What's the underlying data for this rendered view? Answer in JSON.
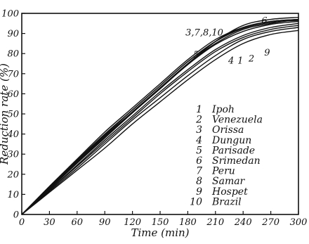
{
  "chart_data": {
    "type": "line",
    "xlabel": "Time  (min)",
    "ylabel": "Reduction  rate (%)",
    "xlim": [
      0,
      300
    ],
    "ylim": [
      0,
      100
    ],
    "x_ticks": [
      0,
      30,
      60,
      90,
      120,
      150,
      180,
      210,
      240,
      270,
      300
    ],
    "x_tick_labels": [
      "0",
      "30",
      "60",
      "90",
      "120",
      "150",
      "180",
      "210",
      "240",
      "270",
      "300"
    ],
    "y_ticks": [
      0,
      10,
      20,
      30,
      40,
      50,
      60,
      70,
      80,
      90,
      100
    ],
    "y_tick_labels": [
      "0",
      "10",
      "20",
      "30",
      "40",
      "50",
      "60",
      "70",
      "80",
      "90",
      "100"
    ],
    "grid": false,
    "legend_position": "lower-right",
    "series": [
      {
        "id": "1",
        "name": "Ipoh",
        "x": [
          0,
          30,
          60,
          90,
          120,
          150,
          180,
          210,
          240,
          270,
          300
        ],
        "y": [
          0,
          12,
          24,
          36,
          48,
          60,
          71,
          81,
          88,
          92,
          94
        ]
      },
      {
        "id": "2",
        "name": "Venezuela",
        "x": [
          0,
          30,
          60,
          90,
          120,
          150,
          180,
          210,
          240,
          270,
          300
        ],
        "y": [
          0,
          11.5,
          23,
          35,
          47,
          58,
          69,
          79,
          87,
          91,
          93
        ]
      },
      {
        "id": "3",
        "name": "Orissa",
        "x": [
          0,
          30,
          60,
          90,
          120,
          150,
          180,
          210,
          240,
          270,
          300
        ],
        "y": [
          0,
          13,
          26,
          39,
          51,
          63,
          75,
          85,
          92,
          95,
          97
        ]
      },
      {
        "id": "4",
        "name": "Dungun",
        "x": [
          0,
          30,
          60,
          90,
          120,
          150,
          180,
          210,
          240,
          270,
          300
        ],
        "y": [
          0,
          12,
          24.5,
          37,
          49,
          61,
          72,
          82,
          89,
          93,
          95
        ]
      },
      {
        "id": "5",
        "name": "Parisade",
        "x": [
          0,
          30,
          60,
          90,
          120,
          150,
          180,
          210,
          240,
          270,
          300
        ],
        "y": [
          0,
          14,
          27.5,
          41,
          53,
          65,
          77,
          87,
          93,
          96,
          97
        ]
      },
      {
        "id": "6",
        "name": "Srimedan",
        "x": [
          0,
          30,
          60,
          90,
          120,
          150,
          180,
          210,
          240,
          270,
          300
        ],
        "y": [
          0,
          13,
          26,
          38.5,
          51,
          63,
          75,
          86,
          94,
          97,
          98
        ]
      },
      {
        "id": "7",
        "name": "Peru",
        "x": [
          0,
          30,
          60,
          90,
          120,
          150,
          180,
          210,
          240,
          270,
          300
        ],
        "y": [
          0,
          13.5,
          27,
          40,
          52,
          64,
          76,
          86,
          93,
          96,
          97
        ]
      },
      {
        "id": "8",
        "name": "Samar",
        "x": [
          0,
          30,
          60,
          90,
          120,
          150,
          180,
          210,
          240,
          270,
          300
        ],
        "y": [
          0,
          13,
          26.5,
          39.5,
          52,
          64,
          76,
          86,
          92.5,
          95.5,
          96.5
        ]
      },
      {
        "id": "9",
        "name": "Hospet",
        "x": [
          0,
          30,
          60,
          90,
          120,
          150,
          180,
          210,
          240,
          270,
          300
        ],
        "y": [
          0,
          11,
          22,
          33,
          45,
          56,
          67,
          77,
          85,
          89.5,
          91.5
        ]
      },
      {
        "id": "10",
        "name": "Brazil",
        "x": [
          0,
          30,
          60,
          90,
          120,
          150,
          180,
          210,
          240,
          270,
          300
        ],
        "y": [
          0,
          12.5,
          25.5,
          38,
          50.5,
          62.5,
          74.5,
          84.5,
          91,
          94.5,
          96
        ]
      }
    ],
    "curve_labels": [
      {
        "text": "3,7,8,10",
        "x": 198,
        "y": 89
      },
      {
        "text": "6",
        "x": 263,
        "y": 95
      },
      {
        "text": "5",
        "x": 189,
        "y": 78
      },
      {
        "text": "4",
        "x": 227,
        "y": 75
      },
      {
        "text": "1",
        "x": 237,
        "y": 75
      },
      {
        "text": "2",
        "x": 249,
        "y": 76
      },
      {
        "text": "9",
        "x": 266,
        "y": 79
      }
    ]
  }
}
